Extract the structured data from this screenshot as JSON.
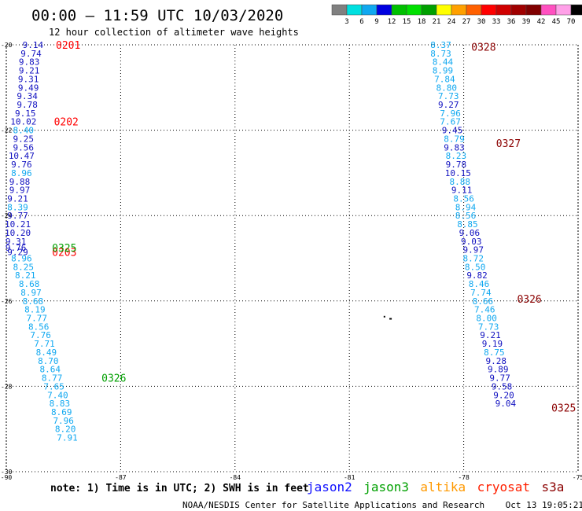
{
  "chart_data": {
    "type": "scatter",
    "title": "00:00 – 11:59 UTC 10/03/2020",
    "subtitle": "12 hour collection of altimeter wave heights",
    "xlim": [
      -90,
      -75
    ],
    "ylim": [
      -30,
      -20
    ],
    "x_ticks": [
      "-90",
      "-87",
      "-84",
      "-81",
      "-78",
      "-75"
    ],
    "y_ticks": [
      "-20",
      "-22",
      "-24",
      "-26",
      "-28",
      "-30"
    ],
    "grid": true,
    "colorbar": {
      "labels": [
        "3",
        "6",
        "9",
        "12",
        "15",
        "18",
        "21",
        "24",
        "27",
        "30",
        "33",
        "36",
        "39",
        "42",
        "45",
        "70"
      ],
      "unit": "(ft)",
      "colors": [
        "#808080",
        "#00e0e0",
        "#10a8f0",
        "#0000e0",
        "#00c000",
        "#00e000",
        "#00a000",
        "#ffff00",
        "#ffa000",
        "#ff6000",
        "#ff0000",
        "#d00000",
        "#a00000",
        "#800000",
        "#ff50c0",
        "#ffa0e8",
        "#000000"
      ]
    },
    "value_colors": {
      "light": "#10a8f0",
      "dark": "#1010c0"
    },
    "point_font": "11px",
    "tracks": [
      {
        "x0": -89.55,
        "y0": -20.0,
        "dx": 0.0076,
        "dy": 0.2,
        "values": [
          "9.14",
          "9.74",
          "9.83",
          "9.21",
          "9.31",
          "9.49",
          "9.34",
          "9.78",
          "9.15",
          "10.02",
          "8.40",
          "9.25",
          "9.56",
          "10.47",
          "9.76",
          "8.96",
          "9.88",
          "9.97",
          "9.21",
          "8.39",
          "9.77",
          "10.21",
          "10.20",
          "9.31",
          "9.76",
          "9.29",
          "8.96",
          "8.25",
          "8.21",
          "8.68",
          "8.97",
          "8.68",
          "8.19",
          "7.77",
          "8.56",
          "7.76",
          "7.71",
          "8.49",
          "8.70",
          "8.64",
          "8.77",
          "7.65",
          "7.40",
          "8.83",
          "8.69",
          "7.96",
          "8.20",
          "7.91"
        ],
        "points": [
          {
            "x": -89.3,
            "y": -20.0
          },
          {
            "x": -89.35,
            "y": -20.2
          },
          {
            "x": -89.4,
            "y": -20.4
          },
          {
            "x": -89.4,
            "y": -20.6
          },
          {
            "x": -89.42,
            "y": -20.8
          },
          {
            "x": -89.42,
            "y": -21.0
          },
          {
            "x": -89.45,
            "y": -21.2
          },
          {
            "x": -89.45,
            "y": -21.4
          },
          {
            "x": -89.5,
            "y": -21.6
          },
          {
            "x": -89.55,
            "y": -21.8
          },
          {
            "x": -89.55,
            "y": -22.0
          },
          {
            "x": -89.55,
            "y": -22.2
          },
          {
            "x": -89.55,
            "y": -22.4
          },
          {
            "x": -89.6,
            "y": -22.6
          },
          {
            "x": -89.6,
            "y": -22.8
          },
          {
            "x": -89.6,
            "y": -23.0
          },
          {
            "x": -89.65,
            "y": -23.2
          },
          {
            "x": -89.65,
            "y": -23.4
          },
          {
            "x": -89.7,
            "y": -23.6
          },
          {
            "x": -89.7,
            "y": -23.8
          },
          {
            "x": -89.7,
            "y": -24.0
          },
          {
            "x": -89.7,
            "y": -24.2
          },
          {
            "x": -89.7,
            "y": -24.4
          },
          {
            "x": -89.75,
            "y": -24.6
          },
          {
            "x": -89.75,
            "y": -24.75
          },
          {
            "x": -89.7,
            "y": -24.85
          },
          {
            "x": -89.6,
            "y": -25.0
          },
          {
            "x": -89.55,
            "y": -25.2
          },
          {
            "x": -89.5,
            "y": -25.4
          },
          {
            "x": -89.4,
            "y": -25.6
          },
          {
            "x": -89.35,
            "y": -25.8
          },
          {
            "x": -89.3,
            "y": -26.0
          },
          {
            "x": -89.25,
            "y": -26.2
          },
          {
            "x": -89.2,
            "y": -26.4
          },
          {
            "x": -89.15,
            "y": -26.6
          },
          {
            "x": -89.1,
            "y": -26.8
          },
          {
            "x": -89.0,
            "y": -27.0
          },
          {
            "x": -88.95,
            "y": -27.2
          },
          {
            "x": -88.9,
            "y": -27.4
          },
          {
            "x": -88.85,
            "y": -27.6
          },
          {
            "x": -88.8,
            "y": -27.8
          },
          {
            "x": -88.75,
            "y": -28.0
          },
          {
            "x": -88.65,
            "y": -28.2
          },
          {
            "x": -88.6,
            "y": -28.4
          },
          {
            "x": -88.55,
            "y": -28.6
          },
          {
            "x": -88.5,
            "y": -28.8
          },
          {
            "x": -88.45,
            "y": -29.0
          },
          {
            "x": -88.4,
            "y": -29.2
          }
        ]
      },
      {
        "values": [
          "8.37",
          "8.73",
          "8.44",
          "8.99",
          "7.84",
          "8.80",
          "7.73",
          "9.27",
          "7.96",
          "7.67",
          "9.45",
          "8.79",
          "9.83",
          "8.23",
          "9.78",
          "10.15",
          "8.88",
          "9.11",
          "8.56",
          "8.94",
          "8.56",
          "8.85",
          "9.06",
          "9.03",
          "9.97",
          "8.72",
          "8.50",
          "9.82",
          "8.46",
          "7.74",
          "8.66",
          "7.46",
          "8.00",
          "7.73",
          "9.21",
          "9.19",
          "8.75",
          "9.28",
          "9.89",
          "9.77",
          "9.58",
          "9.20",
          "9.04"
        ],
        "points": [
          {
            "x": -78.6,
            "y": -20.0
          },
          {
            "x": -78.6,
            "y": -20.2
          },
          {
            "x": -78.55,
            "y": -20.4
          },
          {
            "x": -78.55,
            "y": -20.6
          },
          {
            "x": -78.5,
            "y": -20.8
          },
          {
            "x": -78.45,
            "y": -21.0
          },
          {
            "x": -78.4,
            "y": -21.2
          },
          {
            "x": -78.4,
            "y": -21.4
          },
          {
            "x": -78.35,
            "y": -21.6
          },
          {
            "x": -78.35,
            "y": -21.8
          },
          {
            "x": -78.3,
            "y": -22.0
          },
          {
            "x": -78.25,
            "y": -22.2
          },
          {
            "x": -78.25,
            "y": -22.4
          },
          {
            "x": -78.2,
            "y": -22.6
          },
          {
            "x": -78.2,
            "y": -22.8
          },
          {
            "x": -78.15,
            "y": -23.0
          },
          {
            "x": -78.1,
            "y": -23.2
          },
          {
            "x": -78.05,
            "y": -23.4
          },
          {
            "x": -78.0,
            "y": -23.6
          },
          {
            "x": -77.95,
            "y": -23.8
          },
          {
            "x": -77.95,
            "y": -24.0
          },
          {
            "x": -77.9,
            "y": -24.2
          },
          {
            "x": -77.85,
            "y": -24.4
          },
          {
            "x": -77.8,
            "y": -24.6
          },
          {
            "x": -77.75,
            "y": -24.8
          },
          {
            "x": -77.75,
            "y": -25.0
          },
          {
            "x": -77.7,
            "y": -25.2
          },
          {
            "x": -77.65,
            "y": -25.4
          },
          {
            "x": -77.6,
            "y": -25.6
          },
          {
            "x": -77.55,
            "y": -25.8
          },
          {
            "x": -77.5,
            "y": -26.0
          },
          {
            "x": -77.45,
            "y": -26.2
          },
          {
            "x": -77.4,
            "y": -26.4
          },
          {
            "x": -77.35,
            "y": -26.6
          },
          {
            "x": -77.3,
            "y": -26.8
          },
          {
            "x": -77.25,
            "y": -27.0
          },
          {
            "x": -77.2,
            "y": -27.2
          },
          {
            "x": -77.15,
            "y": -27.4
          },
          {
            "x": -77.1,
            "y": -27.6
          },
          {
            "x": -77.05,
            "y": -27.8
          },
          {
            "x": -77.0,
            "y": -28.0
          },
          {
            "x": -76.95,
            "y": -28.2
          },
          {
            "x": -76.9,
            "y": -28.4
          }
        ]
      }
    ],
    "time_labels": [
      {
        "text": "0201",
        "x": -88.7,
        "y": -20.0,
        "color": "#ff0000"
      },
      {
        "text": "0202",
        "x": -88.75,
        "y": -21.8,
        "color": "#ff0000"
      },
      {
        "text": "0203",
        "x": -88.8,
        "y": -24.85,
        "color": "#ff0000"
      },
      {
        "text": "0325",
        "x": -88.8,
        "y": -24.75,
        "color": "#00a000"
      },
      {
        "text": "0326",
        "x": -87.5,
        "y": -27.8,
        "color": "#00a000"
      },
      {
        "text": "0328",
        "x": -77.8,
        "y": -20.05,
        "color": "#8b0000"
      },
      {
        "text": "0327",
        "x": -77.15,
        "y": -22.3,
        "color": "#8b0000"
      },
      {
        "text": "0326",
        "x": -76.6,
        "y": -25.95,
        "color": "#8b0000"
      },
      {
        "text": "0325",
        "x": -75.7,
        "y": -28.5,
        "color": "#8b0000"
      }
    ]
  },
  "note": "note: 1) Time is in UTC; 2) SWH is in feet",
  "satellites": [
    {
      "name": "jason2",
      "color": "#1010ff"
    },
    {
      "name": "jason3",
      "color": "#00a000"
    },
    {
      "name": "altika",
      "color": "#ff9900"
    },
    {
      "name": "cryosat",
      "color": "#ff2000"
    },
    {
      "name": "s3a",
      "color": "#8b0000"
    }
  ],
  "footer": "NOAA/NESDIS Center for Satellite Applications and Research    Oct 13 19:05:21 UTC 2020"
}
